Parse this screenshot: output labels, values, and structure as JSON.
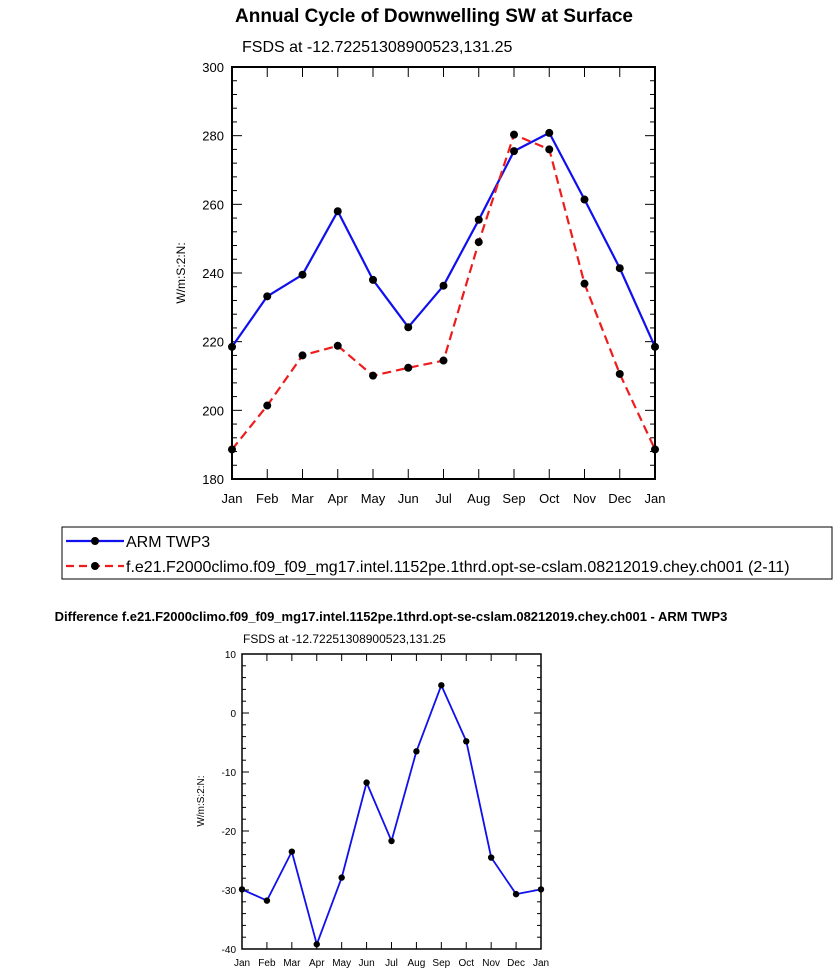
{
  "chart_data": [
    {
      "type": "line",
      "title": "Annual Cycle of Downwelling SW at Surface",
      "subtitle": "FSDS at -12.72251308900523,131.25",
      "ylabel": "W/m:S:2:N:",
      "xlabel": "",
      "categories": [
        "Jan",
        "Feb",
        "Mar",
        "Apr",
        "May",
        "Jun",
        "Jul",
        "Aug",
        "Sep",
        "Oct",
        "Nov",
        "Dec",
        "Jan"
      ],
      "ylim": [
        180,
        300
      ],
      "yticks": [
        "180",
        "200",
        "220",
        "240",
        "260",
        "280",
        "300"
      ],
      "legend_position": "below",
      "series": [
        {
          "name": "ARM TWP3",
          "color": "#1010ee",
          "style": "solid",
          "values": [
            218.5,
            233.2,
            239.5,
            258.0,
            238.0,
            224.2,
            236.3,
            255.5,
            275.5,
            280.8,
            261.4,
            241.4,
            218.5
          ]
        },
        {
          "name": "f.e21.F2000climo.f09_f09_mg17.intel.1152pe.1thrd.opt-se-cslam.08212019.chey.ch001 (2-11)",
          "color": "#ee1c1c",
          "style": "dashed",
          "values": [
            188.6,
            201.4,
            216.0,
            218.8,
            210.1,
            212.4,
            214.5,
            249.0,
            280.3,
            276.0,
            236.9,
            210.6,
            188.6
          ]
        }
      ]
    },
    {
      "type": "line",
      "title": "Difference f.e21.F2000climo.f09_f09_mg17.intel.1152pe.1thrd.opt-se-cslam.08212019.chey.ch001 - ARM TWP3",
      "subtitle": "FSDS at -12.72251308900523,131.25",
      "ylabel": "W/m:S:2:N:",
      "xlabel": "",
      "categories": [
        "Jan",
        "Feb",
        "Mar",
        "Apr",
        "May",
        "Jun",
        "Jul",
        "Aug",
        "Sep",
        "Oct",
        "Nov",
        "Dec",
        "Jan"
      ],
      "ylim": [
        -40,
        10
      ],
      "yticks": [
        "-40",
        "-30",
        "-20",
        "-10",
        "0",
        "10"
      ],
      "series": [
        {
          "color": "#1010ee",
          "style": "solid",
          "values": [
            -29.9,
            -31.8,
            -23.5,
            -39.2,
            -27.9,
            -11.8,
            -21.7,
            -6.5,
            4.7,
            -4.8,
            -24.5,
            -30.7,
            -29.9
          ]
        }
      ]
    }
  ]
}
